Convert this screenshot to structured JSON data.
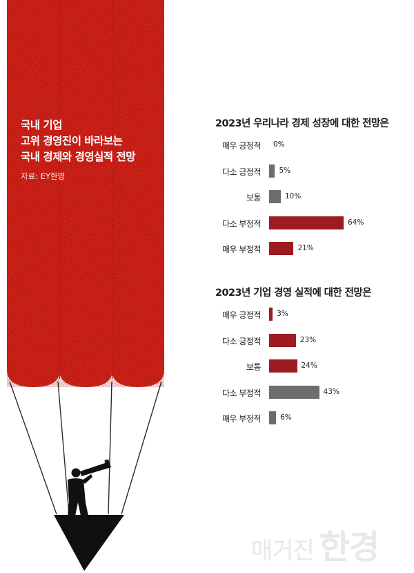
{
  "header": {
    "title_lines": [
      "국내 기업",
      "고위 경영진이 바라보는",
      "국내 경제와 경영실적 전망"
    ],
    "source": "자료: EY한영"
  },
  "colors": {
    "background": "#ffffff",
    "pencil_red": "#d8261b",
    "positive_bar": "#9e1b22",
    "negative_bar": "#6d6d6d",
    "pencil_tip": "#101010",
    "watermark": "#e8e8e8"
  },
  "illustration": {
    "description_icon": "pencils-hot-air-balloon-with-telescope-man-icon"
  },
  "chart_data": [
    {
      "type": "bar",
      "orientation": "horizontal",
      "title": "2023년 우리나라 경제 성장에 대한 전망은",
      "categories": [
        "매우 긍정적",
        "다소 긍정적",
        "보통",
        "다소 부정적",
        "매우 부정적"
      ],
      "values": [
        0,
        5,
        10,
        64,
        21
      ],
      "value_labels": [
        "0%",
        "5%",
        "10%",
        "64%",
        "21%"
      ],
      "bar_colors": [
        "#6d6d6d",
        "#6d6d6d",
        "#6d6d6d",
        "#9e1b22",
        "#9e1b22"
      ],
      "xlim": [
        0,
        70
      ]
    },
    {
      "type": "bar",
      "orientation": "horizontal",
      "title": "2023년 기업 경영 실적에 대한 전망은",
      "categories": [
        "매우 긍정적",
        "다소 긍정적",
        "보통",
        "다소 부정적",
        "매우 부정적"
      ],
      "values": [
        3,
        23,
        24,
        43,
        6
      ],
      "value_labels": [
        "3%",
        "23%",
        "24%",
        "43%",
        "6%"
      ],
      "bar_colors": [
        "#9e1b22",
        "#9e1b22",
        "#9e1b22",
        "#6d6d6d",
        "#6d6d6d"
      ],
      "xlim": [
        0,
        70
      ]
    }
  ],
  "watermark": {
    "part1": "매거진",
    "part2": "한경"
  }
}
